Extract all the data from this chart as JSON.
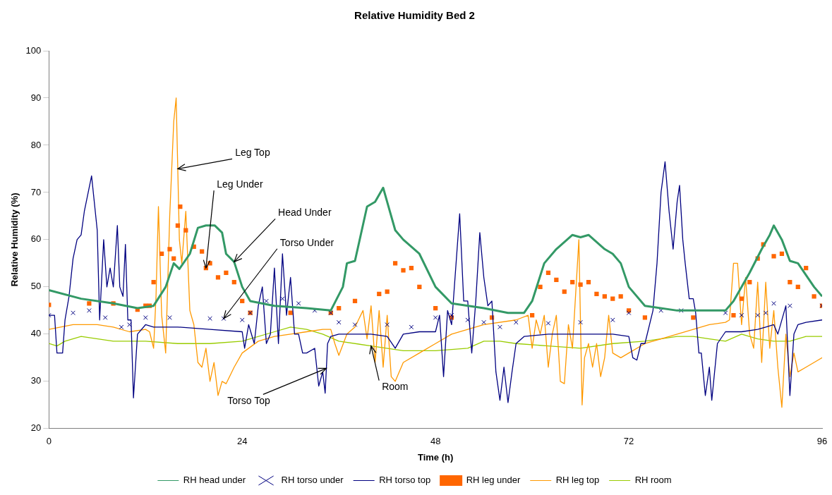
{
  "chart_data": {
    "type": "line",
    "title": "Relative Humidity Bed 2",
    "xlabel": "Time (h)",
    "ylabel": "Relative Humidity (%)",
    "xlim": [
      0,
      96
    ],
    "xticks": [
      0,
      24,
      48,
      72,
      96
    ],
    "ylim": [
      20,
      100
    ],
    "yticks": [
      20,
      30,
      40,
      50,
      60,
      70,
      80,
      90,
      100
    ],
    "grid": false,
    "legend": "bottom",
    "annotations": [
      {
        "text": "Leg Top",
        "x": 16,
        "y": 75
      },
      {
        "text": "Leg Under",
        "x": 19.5,
        "y": 54
      },
      {
        "text": "Head Under",
        "x": 23,
        "y": 55.3
      },
      {
        "text": "Torso Under",
        "x": 21.7,
        "y": 43.3
      },
      {
        "text": "Torso Top",
        "x": 34.45,
        "y": 32.75
      },
      {
        "text": "Room",
        "x": 40,
        "y": 37.5
      }
    ],
    "series": [
      {
        "name": "RH head under",
        "color": "#339966",
        "marker": "none",
        "x": [
          0,
          4,
          8,
          11,
          13,
          14.5,
          15.5,
          16.2,
          17.5,
          18.5,
          19.5,
          20.6,
          21.5,
          22,
          23,
          24,
          25,
          28,
          32,
          35,
          36.5,
          37,
          38,
          39.5,
          40.5,
          41.5,
          42,
          43,
          44,
          46,
          48,
          50,
          54,
          57,
          59,
          60,
          61.5,
          63,
          65,
          66,
          67,
          69,
          70,
          71,
          72,
          74,
          78,
          84,
          85,
          87,
          88.5,
          89.5,
          90,
          91,
          92,
          93,
          95,
          96
        ],
        "values": [
          49.3,
          47.5,
          46.5,
          45.5,
          46,
          50,
          55,
          53.8,
          57,
          62.5,
          63,
          63,
          61.5,
          57,
          55.3,
          50,
          47,
          46,
          45.5,
          45,
          50,
          55,
          55.5,
          67,
          68,
          71,
          68,
          62,
          60,
          57,
          50,
          46.5,
          45.5,
          44.5,
          44.5,
          47,
          55,
          58,
          61,
          60.5,
          61,
          58,
          57,
          55,
          50,
          46,
          45,
          45,
          47,
          53,
          58,
          61,
          63,
          60,
          55.5,
          55,
          50,
          48
        ]
      },
      {
        "name": "RH torso under",
        "type": "scatter",
        "color": "#000080",
        "marker": "cross",
        "x": [
          0,
          3,
          5,
          7,
          9,
          10,
          12,
          15,
          20,
          21.7,
          24,
          25,
          27,
          29,
          31,
          33,
          35,
          36,
          38,
          42,
          45,
          48,
          50,
          52,
          54,
          56,
          58,
          62,
          66,
          70,
          72,
          76,
          78.5,
          84,
          86,
          88,
          89,
          90,
          92,
          96
        ],
        "values": [
          44,
          44.5,
          45,
          43.5,
          41.5,
          42,
          43.5,
          43.5,
          43.3,
          43.3,
          43,
          44.5,
          47,
          47.5,
          46.5,
          45,
          44.5,
          42.5,
          42,
          42,
          41.5,
          43.5,
          44,
          43,
          42.5,
          41.5,
          42.5,
          42.3,
          42.5,
          43,
          44.5,
          45,
          45,
          44.5,
          44,
          44,
          44.5,
          46.5,
          46,
          46
        ]
      },
      {
        "name": "RH torso top",
        "color": "#000080",
        "marker": "none",
        "x": [
          0,
          0.7,
          1,
          1.7,
          2,
          2.5,
          3,
          3.5,
          4,
          4.4,
          5,
          5.3,
          6,
          6.3,
          6.8,
          7.2,
          7.6,
          8,
          8.5,
          8.8,
          9.2,
          9.5,
          9.8,
          10.2,
          10.5,
          11,
          12,
          13,
          16,
          20,
          24,
          24.3,
          24.8,
          25.5,
          26,
          26.5,
          27,
          27.5,
          28,
          28.5,
          29,
          29.5,
          30,
          30.5,
          31,
          31.5,
          32,
          33,
          33.5,
          34,
          34.3,
          34.6,
          35,
          36,
          40,
          42,
          43,
          44,
          46,
          48,
          48.5,
          49,
          49.5,
          50,
          51,
          51.5,
          52,
          52.5,
          53,
          53.5,
          54,
          54.5,
          55,
          55.5,
          56,
          56.5,
          57,
          57.5,
          58,
          59,
          62,
          66,
          70,
          72,
          72.5,
          73,
          73.5,
          74,
          75,
          75.5,
          76,
          76.5,
          77,
          77.5,
          78,
          78.3,
          78.7,
          79,
          79.5,
          80,
          80.3,
          80.7,
          81,
          81.5,
          82,
          82.3,
          83,
          84,
          86,
          88,
          89,
          90,
          90.5,
          91.5,
          92,
          92.5,
          93,
          94,
          96
        ],
        "values": [
          44,
          44,
          36,
          36,
          43,
          48,
          56,
          60,
          61,
          66,
          71,
          73.5,
          62,
          43,
          60,
          50,
          54,
          50,
          63,
          50,
          48,
          59,
          43,
          43,
          26.5,
          40,
          42,
          41.5,
          41.5,
          41,
          40.5,
          37,
          42,
          38,
          46,
          50,
          38,
          40,
          54,
          38,
          57,
          44,
          52,
          40,
          40,
          36,
          36,
          37,
          29,
          32,
          27.5,
          38,
          39.5,
          40,
          40,
          39.5,
          37,
          40,
          40.5,
          40.5,
          44,
          31,
          45,
          42,
          65.5,
          47,
          47,
          36,
          47,
          61.5,
          52,
          46,
          47,
          32,
          26,
          33,
          25.5,
          32,
          38,
          39.5,
          40,
          40,
          40,
          39.5,
          35,
          34.5,
          38,
          38,
          45,
          55,
          70,
          76.5,
          66,
          58,
          68,
          71.5,
          60,
          55,
          47.5,
          47.5,
          44.5,
          36,
          36,
          27,
          33,
          26,
          38,
          40.5,
          40.5,
          41,
          41.5,
          42,
          40,
          46,
          27,
          40,
          42,
          42.5,
          43
        ]
      },
      {
        "name": "RH leg under",
        "type": "scatter",
        "color": "#ff6600",
        "marker": "square",
        "x": [
          0,
          5,
          8,
          11,
          12,
          12.5,
          13,
          14,
          15,
          15.5,
          16,
          16.3,
          17,
          18,
          19,
          19.5,
          20,
          21,
          22,
          23,
          24,
          25,
          30,
          35,
          36,
          38,
          41,
          42,
          43,
          44,
          45,
          46,
          48,
          50,
          55,
          60,
          61,
          62,
          63,
          64,
          65,
          66,
          67,
          68,
          69,
          70,
          71,
          72,
          74,
          80,
          85,
          86,
          87,
          88,
          88.7,
          90,
          91,
          92,
          93,
          94,
          95,
          96
        ],
        "values": [
          46.2,
          46.5,
          46.5,
          45.2,
          46,
          46,
          51,
          57,
          58,
          56,
          63,
          67,
          62,
          58.5,
          57.5,
          54,
          55,
          52,
          53,
          51,
          47,
          44.5,
          44.5,
          44.5,
          45.5,
          47,
          48.5,
          49,
          55,
          53.5,
          54,
          50,
          45.5,
          43.5,
          43.5,
          44,
          50,
          53,
          51.5,
          49,
          51,
          50.5,
          51,
          48.5,
          48,
          47.5,
          48,
          45,
          43.5,
          43.5,
          44,
          47.5,
          51,
          56,
          59,
          56.5,
          57,
          51,
          50,
          54,
          48,
          46
        ]
      },
      {
        "name": "RH leg top",
        "color": "#ff9900",
        "marker": "none",
        "x": [
          0,
          3,
          6,
          8,
          10,
          12,
          12.5,
          13,
          13.3,
          13.6,
          14,
          14.5,
          15,
          15.5,
          15.8,
          16.2,
          16.5,
          17,
          17.5,
          18,
          18.5,
          19,
          19.5,
          20,
          20.5,
          21,
          21.5,
          22,
          23,
          24,
          26,
          28,
          30,
          32,
          34,
          35,
          35.5,
          36,
          37,
          38,
          39,
          39.5,
          40,
          40.5,
          41,
          41.5,
          42,
          42.5,
          43,
          44,
          46,
          48,
          50,
          54,
          58,
          59.5,
          60,
          60.5,
          61,
          61.5,
          62,
          62.5,
          63,
          63.5,
          64,
          64.5,
          65,
          65.8,
          66.2,
          66.5,
          67,
          67.5,
          68,
          68.5,
          69,
          69.5,
          70,
          71,
          72,
          74,
          76,
          78,
          80,
          82,
          84,
          84.5,
          85,
          85.5,
          86,
          86.5,
          87,
          87.5,
          88,
          88.5,
          89,
          89.5,
          90,
          90.5,
          91,
          91.5,
          92,
          92.5,
          93,
          94,
          96
        ],
        "values": [
          41,
          42,
          42,
          41.5,
          40.5,
          41,
          40.5,
          37,
          48,
          67,
          44,
          36,
          65,
          85,
          90,
          60,
          55,
          66,
          45,
          42,
          34,
          33,
          37,
          30,
          34,
          27,
          30,
          29.5,
          33,
          36,
          38.5,
          39.5,
          40,
          40.5,
          41,
          41,
          38,
          35.5,
          40,
          41.5,
          45,
          39,
          46,
          34,
          45,
          33,
          44,
          31,
          30,
          34,
          36,
          38,
          40,
          42,
          43,
          44,
          37,
          43,
          40,
          44,
          33,
          40,
          44,
          30,
          29.5,
          42,
          37,
          60,
          25,
          35,
          38,
          33,
          38,
          31,
          35,
          44,
          36,
          35,
          36,
          38,
          39,
          40,
          41,
          42,
          42.5,
          43,
          55,
          55,
          42,
          52,
          40,
          37,
          51,
          34,
          51,
          37,
          45,
          33,
          24.5,
          40,
          31,
          36,
          32,
          33,
          35
        ]
      },
      {
        "name": "RH room",
        "color": "#99cc00",
        "marker": "none",
        "x": [
          0,
          1,
          2,
          4,
          8,
          12,
          16,
          20,
          24,
          28,
          30,
          32,
          34,
          36,
          40,
          44,
          48,
          52,
          54,
          56,
          58,
          62,
          66,
          70,
          74,
          78,
          80,
          82,
          84,
          86,
          88,
          90,
          92,
          94,
          96
        ],
        "values": [
          38,
          37.5,
          38.5,
          39.5,
          38.5,
          38.5,
          38,
          38,
          38.5,
          40.5,
          41.5,
          41,
          40,
          38.5,
          37.5,
          36.5,
          36.5,
          37,
          38.5,
          38.5,
          38,
          37.5,
          37,
          38,
          38.5,
          39.5,
          39.5,
          39,
          38.5,
          40,
          39,
          38.5,
          38.5,
          39.5,
          39.5
        ]
      }
    ]
  }
}
